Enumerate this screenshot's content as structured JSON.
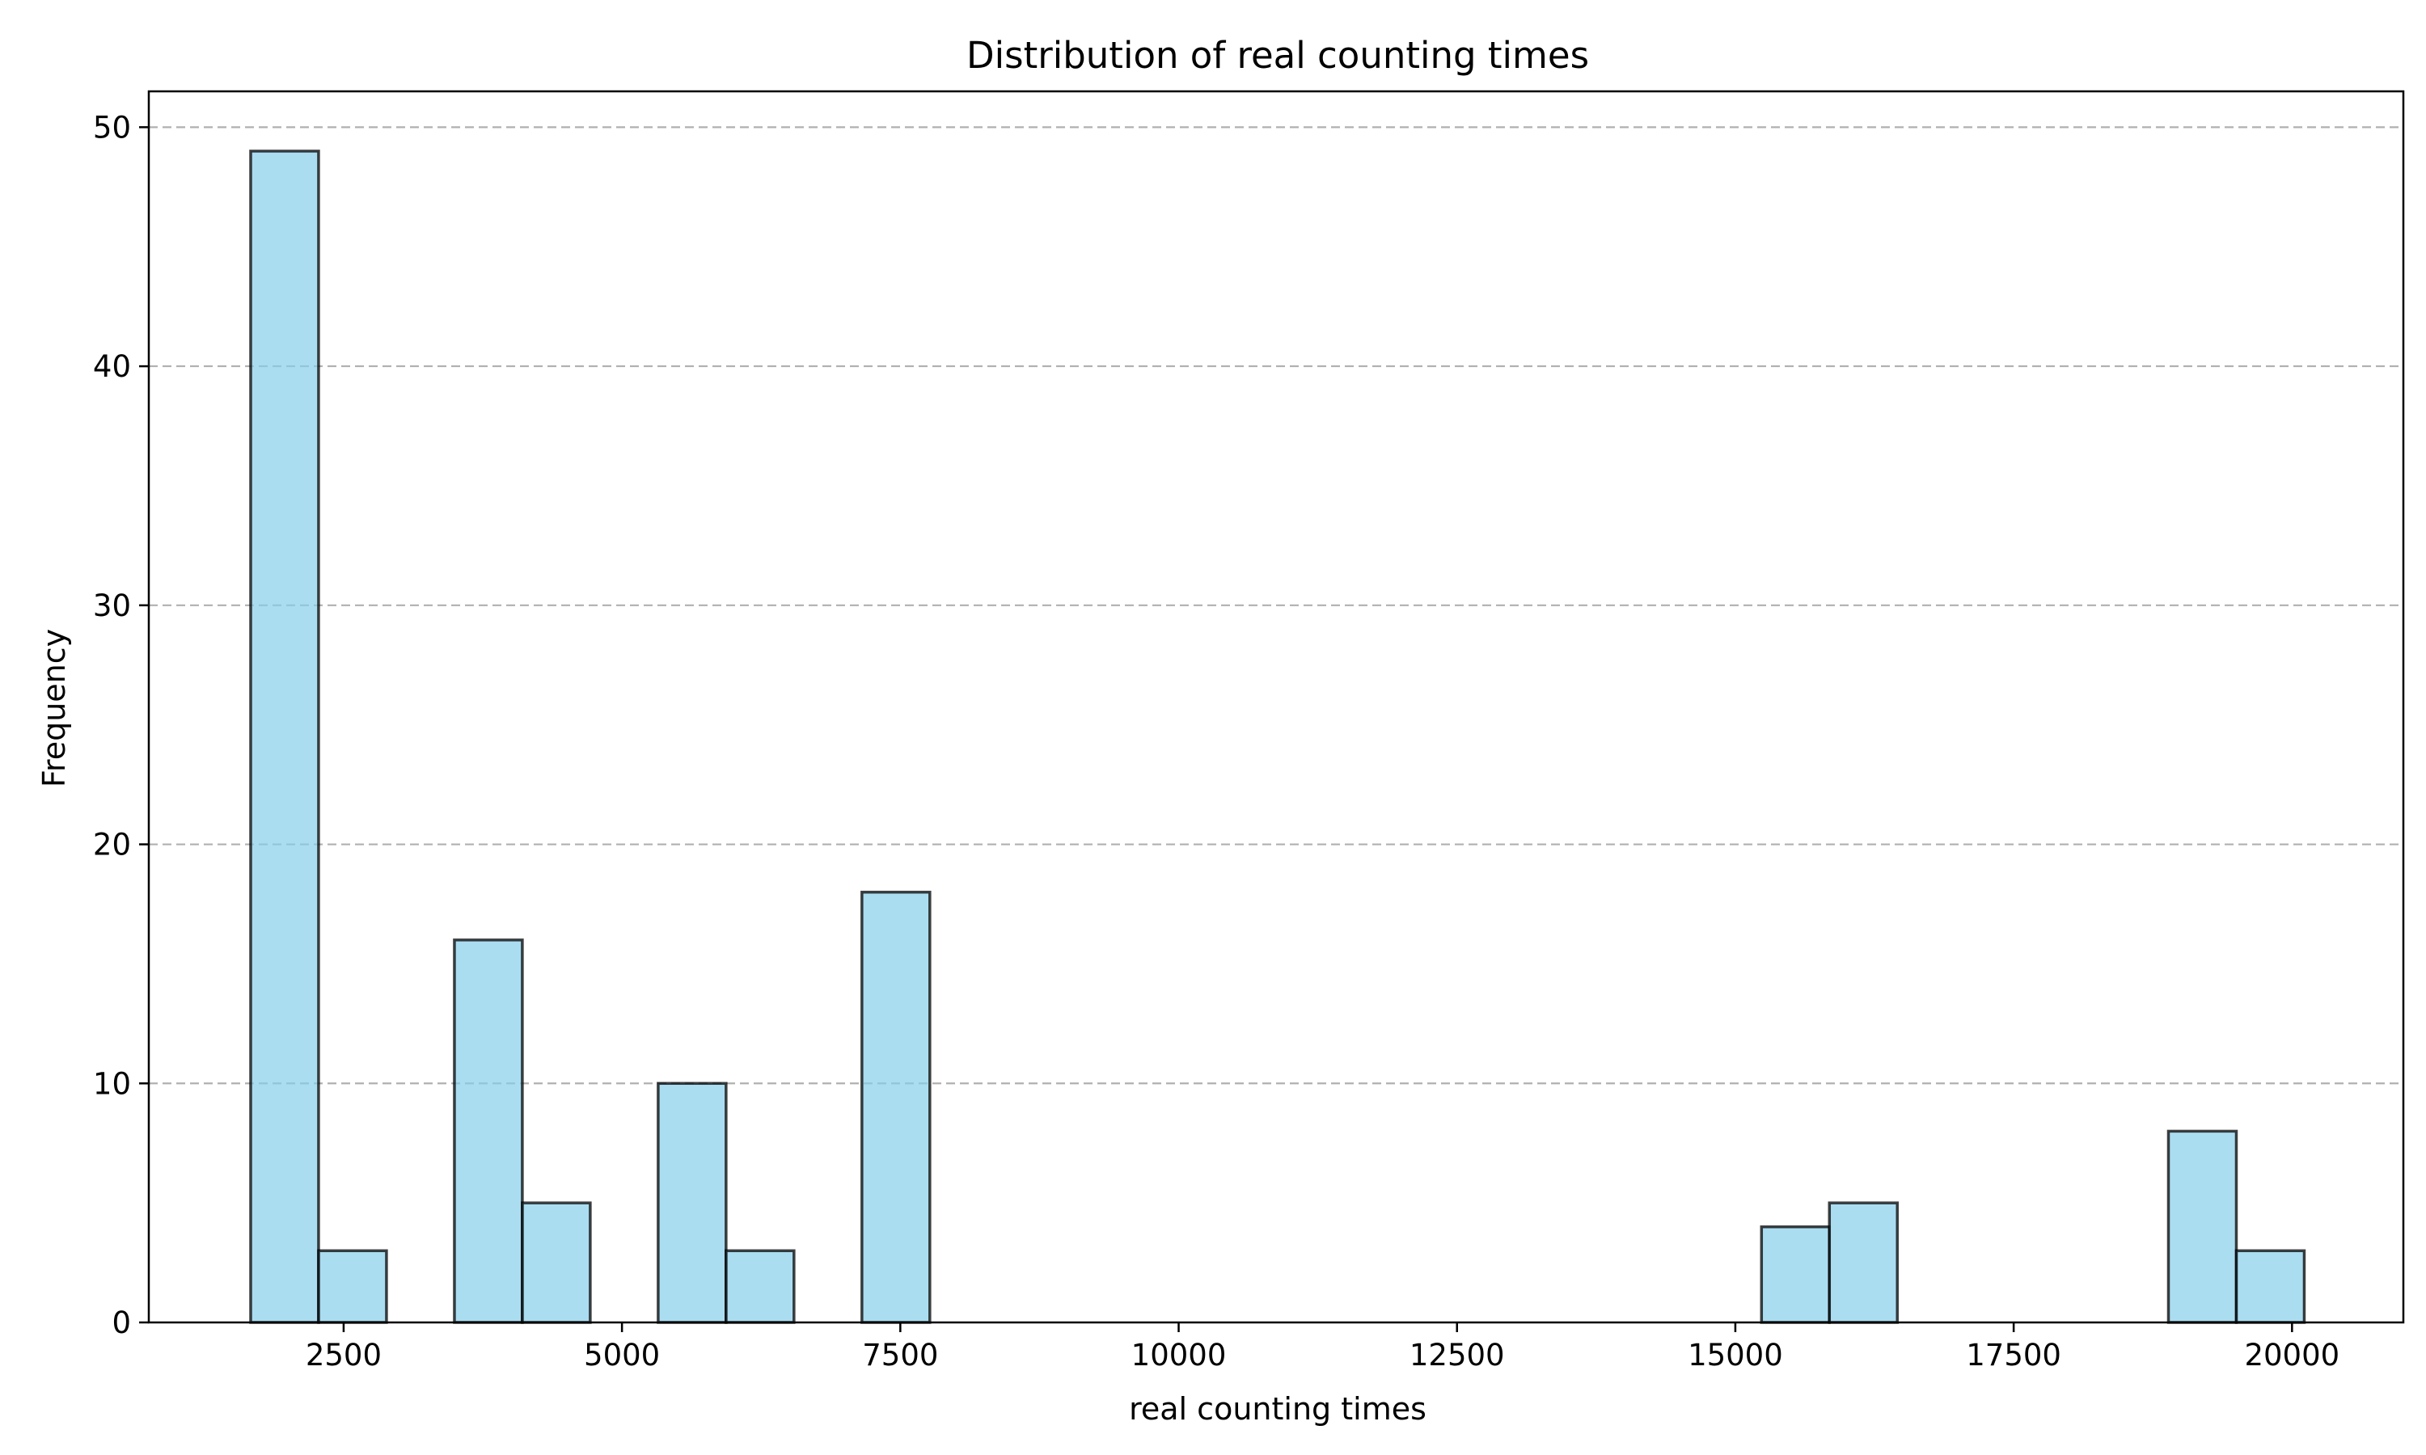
{
  "chart_data": {
    "type": "bar",
    "title": "Distribution of real counting times",
    "xlabel": "real counting times",
    "ylabel": "Frequency",
    "xlim": [
      750,
      21000
    ],
    "ylim": [
      0,
      51.5
    ],
    "xticks": [
      2500,
      5000,
      7500,
      10000,
      12500,
      15000,
      17500,
      20000
    ],
    "yticks": [
      0,
      10,
      20,
      30,
      40,
      50
    ],
    "grid": "y-dashed",
    "bins": [
      {
        "x0": 1665,
        "x1": 2275,
        "count": 49
      },
      {
        "x0": 2275,
        "x1": 2885,
        "count": 3
      },
      {
        "x0": 3495,
        "x1": 4105,
        "count": 16
      },
      {
        "x0": 4105,
        "x1": 4715,
        "count": 5
      },
      {
        "x0": 5325,
        "x1": 5935,
        "count": 10
      },
      {
        "x0": 5935,
        "x1": 6545,
        "count": 3
      },
      {
        "x0": 7155,
        "x1": 7765,
        "count": 18
      },
      {
        "x0": 15235,
        "x1": 15845,
        "count": 4
      },
      {
        "x0": 15845,
        "x1": 16455,
        "count": 5
      },
      {
        "x0": 18890,
        "x1": 19500,
        "count": 8
      },
      {
        "x0": 19500,
        "x1": 20110,
        "count": 3
      }
    ]
  }
}
